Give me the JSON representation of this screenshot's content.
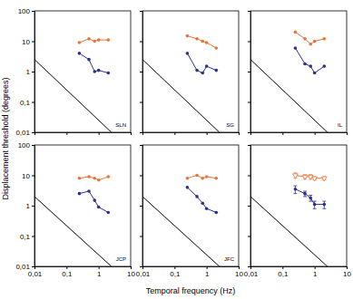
{
  "chart_data": [
    {
      "type": "line",
      "annotation": "SLN",
      "log": true,
      "tick_labels": "y",
      "xlabel": "Temporal frequency (Hz)",
      "ylabel": "Displacement threshold (degrees)",
      "xlim": [
        0.01,
        10
      ],
      "ylim": [
        0.01,
        100
      ],
      "xticks": [
        {
          "value": 0.01,
          "label": "0,01"
        },
        {
          "value": 0.1,
          "label": "0,1"
        },
        1,
        10
      ],
      "yticks": [
        {
          "value": 0.01,
          "label": "0,01"
        },
        {
          "value": 0.1,
          "label": "0,1"
        },
        1,
        10,
        100
      ],
      "series": [
        {
          "color": "#e8743b",
          "marker": "circle",
          "line_style": "solid",
          "x": [
            0.25,
            0.5,
            0.75,
            1,
            2
          ],
          "values": [
            9,
            12,
            10,
            11,
            11
          ]
        },
        {
          "color": "#2b2f8f",
          "marker": "circle",
          "line_style": "solid",
          "x": [
            0.25,
            0.5,
            0.75,
            1,
            2
          ],
          "values": [
            4,
            2.5,
            1,
            1.1,
            0.9
          ]
        },
        {
          "color": "#000000",
          "marker": "none",
          "line_style": "solid",
          "x": [
            0.01,
            2.5
          ],
          "values": [
            2.5,
            0.01
          ]
        }
      ]
    },
    {
      "type": "line",
      "annotation": "SG",
      "log": true,
      "tick_labels": false,
      "xlim": [
        0.01,
        10
      ],
      "ylim": [
        0.01,
        100
      ],
      "xticks": [
        {
          "value": 0.01,
          "label": "0,01"
        },
        {
          "value": 0.1,
          "label": "0,1"
        },
        1,
        10
      ],
      "yticks": [
        {
          "value": 0.01,
          "label": "0,01"
        },
        {
          "value": 0.1,
          "label": "0,1"
        },
        1,
        10,
        100
      ],
      "series": [
        {
          "color": "#e8743b",
          "marker": "circle",
          "line_style": "solid",
          "x": [
            0.25,
            0.5,
            0.75,
            1,
            2
          ],
          "values": [
            15,
            12,
            10,
            9,
            6
          ]
        },
        {
          "color": "#2b2f8f",
          "marker": "circle",
          "line_style": "solid",
          "x": [
            0.25,
            0.5,
            0.75,
            1,
            2
          ],
          "values": [
            4,
            1.1,
            0.9,
            1.5,
            1.1
          ]
        },
        {
          "color": "#000000",
          "marker": "none",
          "line_style": "solid",
          "x": [
            0.01,
            2.5
          ],
          "values": [
            2.5,
            0.01
          ]
        }
      ]
    },
    {
      "type": "line",
      "annotation": "IL",
      "log": true,
      "tick_labels": false,
      "xlim": [
        0.01,
        10
      ],
      "ylim": [
        0.01,
        100
      ],
      "xticks": [
        {
          "value": 0.01,
          "label": "0,01"
        },
        {
          "value": 0.1,
          "label": "0,1"
        },
        1,
        10
      ],
      "yticks": [
        {
          "value": 0.01,
          "label": "0,01"
        },
        {
          "value": 0.1,
          "label": "0,1"
        },
        1,
        10,
        100
      ],
      "series": [
        {
          "color": "#e8743b",
          "marker": "circle",
          "line_style": "solid",
          "x": [
            0.25,
            0.5,
            0.75,
            1,
            2
          ],
          "values": [
            20,
            12,
            8,
            10,
            12
          ]
        },
        {
          "color": "#2b2f8f",
          "marker": "circle",
          "line_style": "solid",
          "x": [
            0.25,
            0.5,
            0.75,
            1,
            2
          ],
          "values": [
            6,
            1.8,
            1.5,
            0.9,
            1.5
          ]
        },
        {
          "color": "#000000",
          "marker": "none",
          "line_style": "solid",
          "x": [
            0.01,
            2.5
          ],
          "values": [
            2.5,
            0.01
          ]
        }
      ]
    },
    {
      "type": "line",
      "annotation": "JCP",
      "log": true,
      "tick_labels": true,
      "xlim": [
        0.01,
        10
      ],
      "ylim": [
        0.01,
        100
      ],
      "xticks": [
        {
          "value": 0.01,
          "label": "0,01"
        },
        {
          "value": 0.1,
          "label": "0,1"
        },
        1,
        10
      ],
      "yticks": [
        {
          "value": 0.01,
          "label": "0,01"
        },
        {
          "value": 0.1,
          "label": "0,1"
        },
        1,
        10,
        100
      ],
      "series": [
        {
          "color": "#e8743b",
          "marker": "circle",
          "line_style": "solid",
          "x": [
            0.25,
            0.5,
            0.75,
            1,
            2
          ],
          "values": [
            8,
            9,
            8,
            7,
            9
          ]
        },
        {
          "color": "#2b2f8f",
          "marker": "circle",
          "line_style": "solid",
          "x": [
            0.25,
            0.5,
            0.75,
            1,
            2
          ],
          "values": [
            2.5,
            3,
            1.5,
            0.9,
            0.6
          ]
        },
        {
          "color": "#000000",
          "marker": "none",
          "line_style": "solid",
          "x": [
            0.01,
            2.5
          ],
          "values": [
            2,
            0.01
          ]
        }
      ]
    },
    {
      "type": "line",
      "annotation": "JFC",
      "log": true,
      "tick_labels": "x",
      "xlim": [
        0.01,
        10
      ],
      "ylim": [
        0.01,
        100
      ],
      "xticks": [
        {
          "value": 0.01,
          "label": "0,01"
        },
        {
          "value": 0.1,
          "label": "0,1"
        },
        1,
        10
      ],
      "yticks": [
        {
          "value": 0.01,
          "label": "0,01"
        },
        {
          "value": 0.1,
          "label": "0,1"
        },
        1,
        10,
        100
      ],
      "series": [
        {
          "color": "#e8743b",
          "marker": "circle",
          "line_style": "solid",
          "x": [
            0.25,
            0.5,
            0.75,
            1,
            2
          ],
          "values": [
            8,
            10,
            8,
            9,
            8
          ]
        },
        {
          "color": "#2b2f8f",
          "marker": "circle",
          "line_style": "solid",
          "x": [
            0.25,
            0.5,
            0.75,
            1,
            2
          ],
          "values": [
            4,
            2,
            1.2,
            0.8,
            0.6
          ]
        },
        {
          "color": "#000000",
          "marker": "none",
          "line_style": "solid",
          "x": [
            0.01,
            2.5
          ],
          "values": [
            2,
            0.01
          ]
        }
      ]
    },
    {
      "type": "line",
      "log": true,
      "tick_labels": "x",
      "xlim": [
        0.01,
        10
      ],
      "ylim": [
        0.01,
        100
      ],
      "xticks": [
        {
          "value": 0.01,
          "label": "0,01"
        },
        {
          "value": 0.1,
          "label": "0,1"
        },
        1,
        10
      ],
      "yticks": [
        {
          "value": 0.01,
          "label": "0,01"
        },
        {
          "value": 0.1,
          "label": "0,1"
        },
        1,
        10,
        100
      ],
      "series": [
        {
          "color": "#e8743b",
          "marker": "triangle",
          "line_style": "solid",
          "x": [
            0.25,
            0.5,
            0.75,
            1,
            2
          ],
          "values": [
            10,
            9,
            9,
            8,
            8
          ],
          "errors": [
            2,
            1.5,
            1.5,
            1,
            1
          ]
        },
        {
          "color": "#2b2f8f",
          "marker": "circle",
          "line_style": "solid",
          "x": [
            0.25,
            0.5,
            0.75,
            1,
            2
          ],
          "values": [
            3.5,
            2.5,
            1.8,
            1.1,
            1.1
          ],
          "errors": [
            1,
            0.5,
            0.4,
            0.3,
            0.3
          ]
        },
        {
          "color": "#000000",
          "marker": "none",
          "line_style": "solid",
          "x": [
            0.01,
            2.5
          ],
          "values": [
            2,
            0.01
          ]
        }
      ]
    }
  ]
}
